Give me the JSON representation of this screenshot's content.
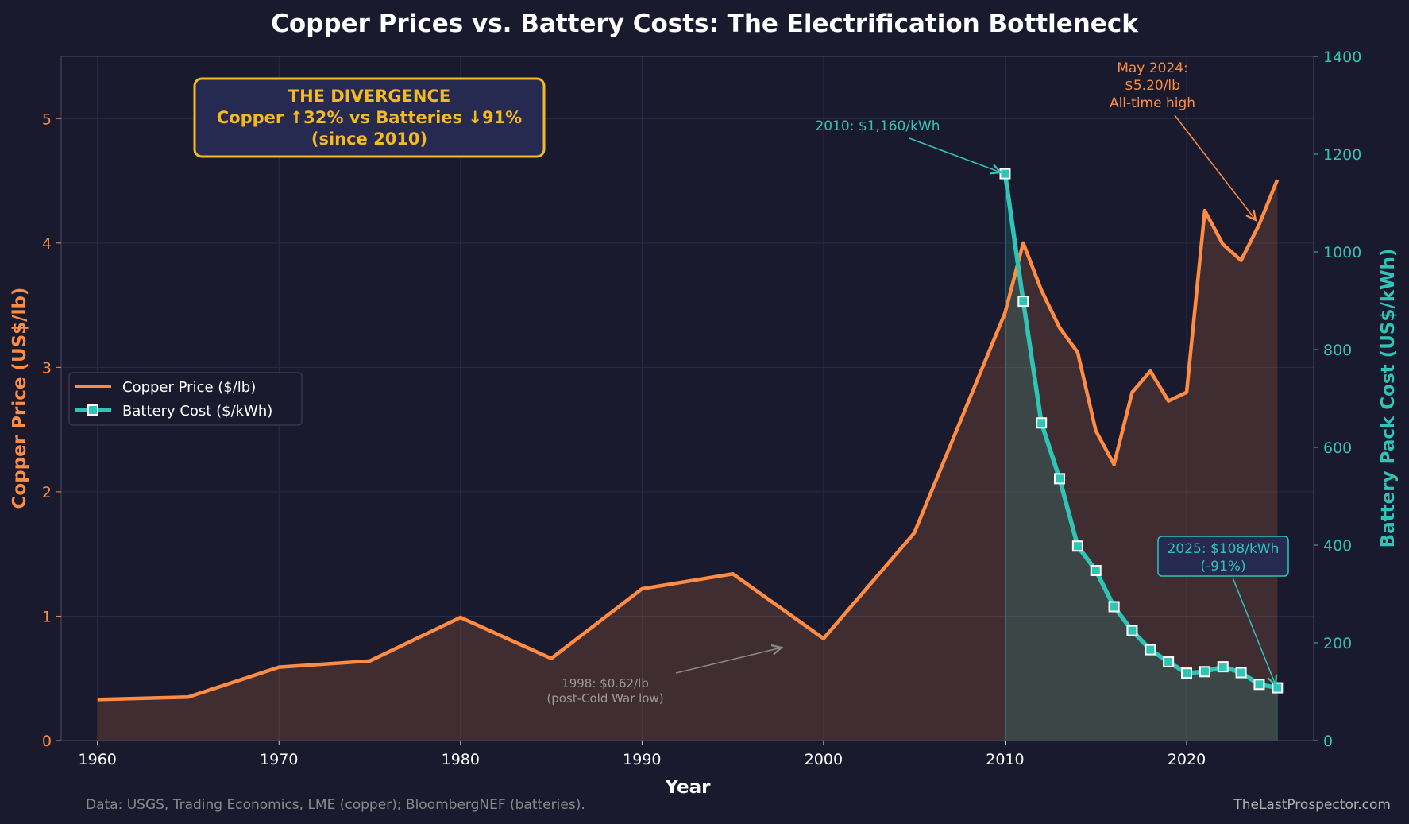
{
  "chart_data": {
    "type": "line",
    "title": "Copper Prices vs. Battery Costs: The Electrification Bottleneck",
    "xlabel": "Year",
    "ylabel_left": "Copper Price (US$/lb)",
    "ylabel_right": "Battery Pack Cost (US$/kWh)",
    "xlim": [
      1958,
      2027
    ],
    "ylim_left": [
      0,
      5.5
    ],
    "ylim_right": [
      0,
      1400
    ],
    "x_ticks": [
      1960,
      1970,
      1980,
      1990,
      2000,
      2010,
      2020
    ],
    "y_left_ticks": [
      0,
      1,
      2,
      3,
      4,
      5
    ],
    "y_right_ticks": [
      0,
      200,
      400,
      600,
      800,
      1000,
      1200,
      1400
    ],
    "grid": true,
    "legend_position": "center-left",
    "series": [
      {
        "name": "Copper Price ($/lb)",
        "axis": "left",
        "color": "#ff8c42",
        "x": [
          1960,
          1965,
          1970,
          1975,
          1980,
          1985,
          1990,
          1995,
          2000,
          2005,
          2010,
          2011,
          2012,
          2013,
          2014,
          2015,
          2016,
          2017,
          2018,
          2019,
          2020,
          2021,
          2022,
          2023,
          2024,
          2025
        ],
        "values": [
          0.33,
          0.35,
          0.59,
          0.64,
          0.99,
          0.66,
          1.22,
          1.34,
          0.82,
          1.67,
          3.44,
          4.0,
          3.62,
          3.32,
          3.12,
          2.49,
          2.22,
          2.8,
          2.97,
          2.73,
          2.8,
          4.26,
          3.99,
          3.86,
          4.15,
          4.51
        ]
      },
      {
        "name": "Battery Cost ($/kWh)",
        "axis": "right",
        "color": "#2ec4b6",
        "x": [
          2010,
          2011,
          2012,
          2013,
          2014,
          2015,
          2016,
          2017,
          2018,
          2019,
          2020,
          2021,
          2022,
          2023,
          2024,
          2025
        ],
        "values": [
          1160,
          899,
          650,
          536,
          398,
          348,
          274,
          225,
          186,
          161,
          138,
          141,
          151,
          139,
          115,
          108
        ]
      }
    ],
    "annotations": {
      "battery_2010": "2010: $1,160/kWh",
      "copper_2024": [
        "May 2024:",
        "$5.20/lb",
        "All-time high"
      ],
      "battery_2025": [
        "2025: $108/kWh",
        "(-91%)"
      ],
      "copper_1998": [
        "1998: $0.62/lb",
        "(post-Cold War low)"
      ],
      "divergence": [
        "THE DIVERGENCE",
        "Copper ↑32% vs Batteries ↓91%",
        "(since 2010)"
      ]
    },
    "footer_source": "Data: USGS, Trading Economics, LME (copper); BloombergNEF (batteries).",
    "footer_site": "TheLastProspector.com"
  }
}
